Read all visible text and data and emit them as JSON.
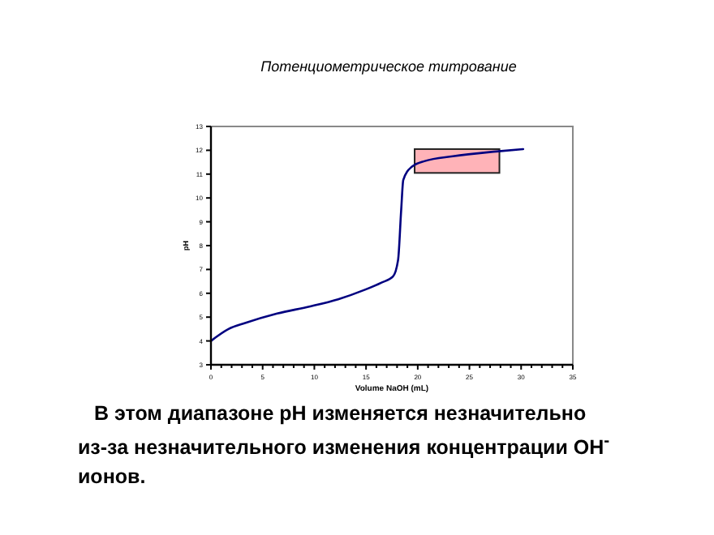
{
  "chart_data": {
    "type": "line",
    "title": "Потенциометрическое титрование",
    "xlabel": "Volume NaOH (mL)",
    "ylabel": "pH",
    "x": [
      0,
      1.7,
      3.3,
      6.4,
      9.6,
      12.3,
      14.9,
      16.5,
      17.6,
      18.1,
      18.4,
      18.6,
      19.4,
      20.7,
      23.4,
      27.6,
      30.2
    ],
    "values": [
      4.0,
      4.5,
      4.75,
      5.15,
      5.45,
      5.75,
      6.15,
      6.45,
      6.7,
      7.4,
      9.5,
      10.75,
      11.3,
      11.55,
      11.75,
      11.95,
      12.05
    ],
    "color": "#000080",
    "xlim": [
      0,
      35
    ],
    "ylim": [
      3,
      13
    ],
    "xticks": [
      0,
      5,
      10,
      15,
      20,
      25,
      30,
      35
    ],
    "yticks": [
      3,
      4,
      5,
      6,
      7,
      8,
      9,
      10,
      11,
      12,
      13
    ],
    "grid": false,
    "marker": "none",
    "line_style": "solid",
    "annotations": [
      "В этом диапазоне pH изменяется незначительно из-за незначительного изменения концентрации OH$^{-}$ ионов."
    ]
  }
}
